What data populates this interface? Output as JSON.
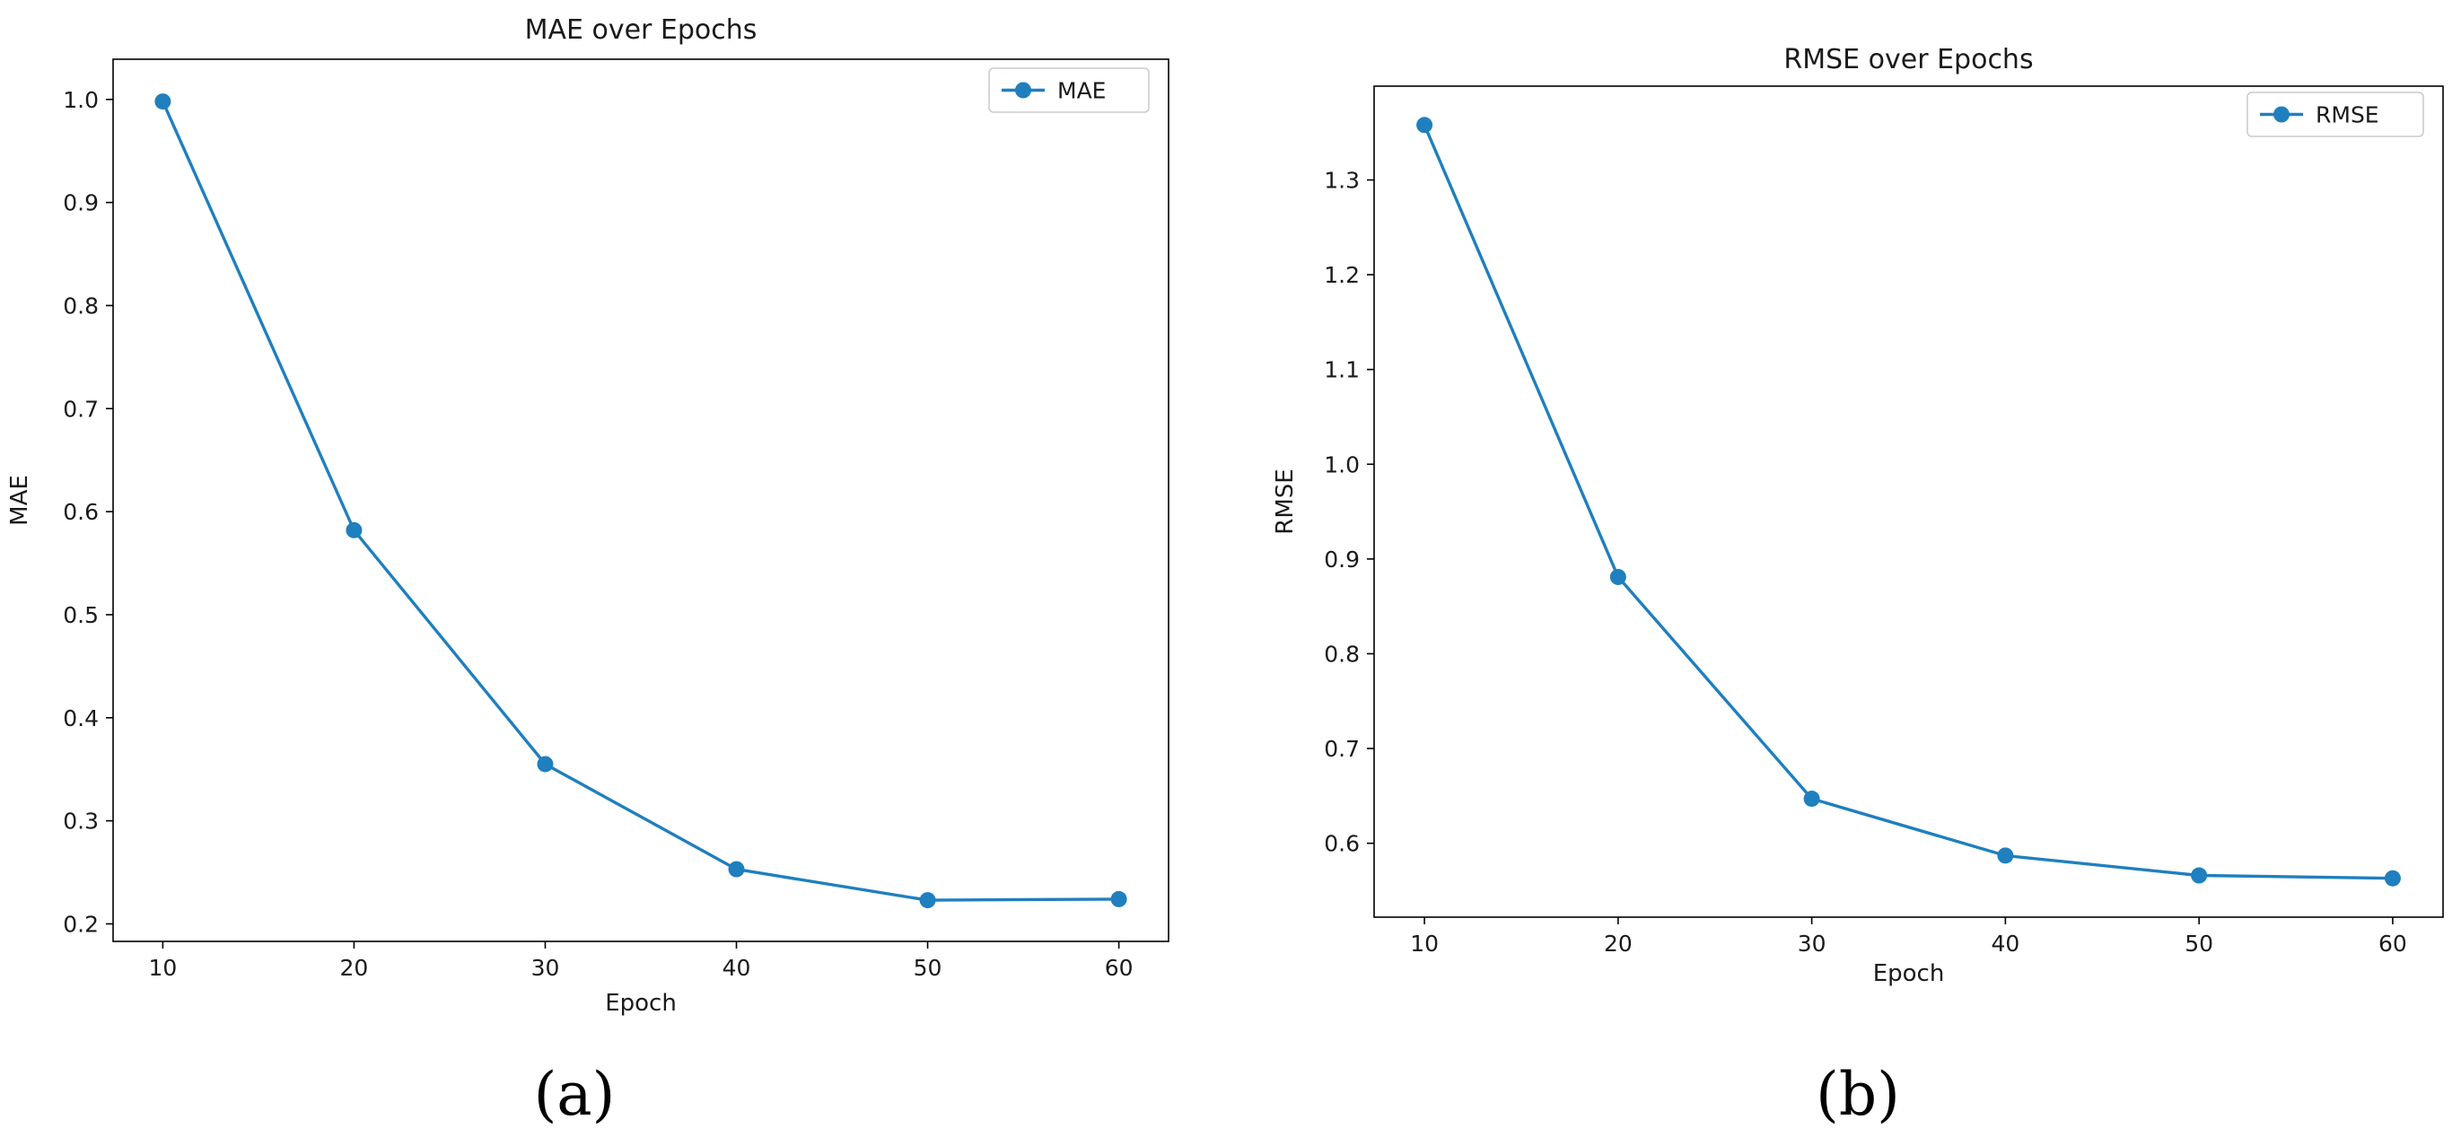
{
  "colors": {
    "series": "#1f7fbf",
    "axis": "#000000",
    "legend_border": "#cccccc"
  },
  "chart_data": [
    {
      "type": "line",
      "title": "MAE over Epochs",
      "xlabel": "Epoch",
      "ylabel": "MAE",
      "x": [
        10,
        20,
        30,
        40,
        50,
        60
      ],
      "series": [
        {
          "name": "MAE",
          "values": [
            0.998,
            0.582,
            0.355,
            0.253,
            0.223,
            0.224
          ],
          "marker": "circle"
        }
      ],
      "xlim": [
        7.4,
        62.6
      ],
      "ylim": [
        0.183,
        1.039
      ],
      "xticks": [
        10,
        20,
        30,
        40,
        50,
        60
      ],
      "yticks": [
        0.2,
        0.3,
        0.4,
        0.5,
        0.6,
        0.7,
        0.8,
        0.9,
        1.0
      ],
      "ytick_labels": [
        "0.2",
        "0.3",
        "0.4",
        "0.5",
        "0.6",
        "0.7",
        "0.8",
        "0.9",
        "1.0"
      ],
      "grid": false,
      "legend": "top-right",
      "panel_label": "(a)"
    },
    {
      "type": "line",
      "title": "RMSE over Epochs",
      "xlabel": "Epoch",
      "ylabel": "RMSE",
      "x": [
        10,
        20,
        30,
        40,
        50,
        60
      ],
      "series": [
        {
          "name": "RMSE",
          "values": [
            1.358,
            0.881,
            0.647,
            0.587,
            0.566,
            0.563
          ],
          "marker": "circle"
        }
      ],
      "xlim": [
        7.4,
        62.6
      ],
      "ylim": [
        0.522,
        1.399
      ],
      "xticks": [
        10,
        20,
        30,
        40,
        50,
        60
      ],
      "yticks": [
        0.6,
        0.7,
        0.8,
        0.9,
        1.0,
        1.1,
        1.2,
        1.3
      ],
      "ytick_labels": [
        "0.6",
        "0.7",
        "0.8",
        "0.9",
        "1.0",
        "1.1",
        "1.2",
        "1.3"
      ],
      "grid": false,
      "legend": "top-right",
      "panel_label": "(b)"
    }
  ]
}
